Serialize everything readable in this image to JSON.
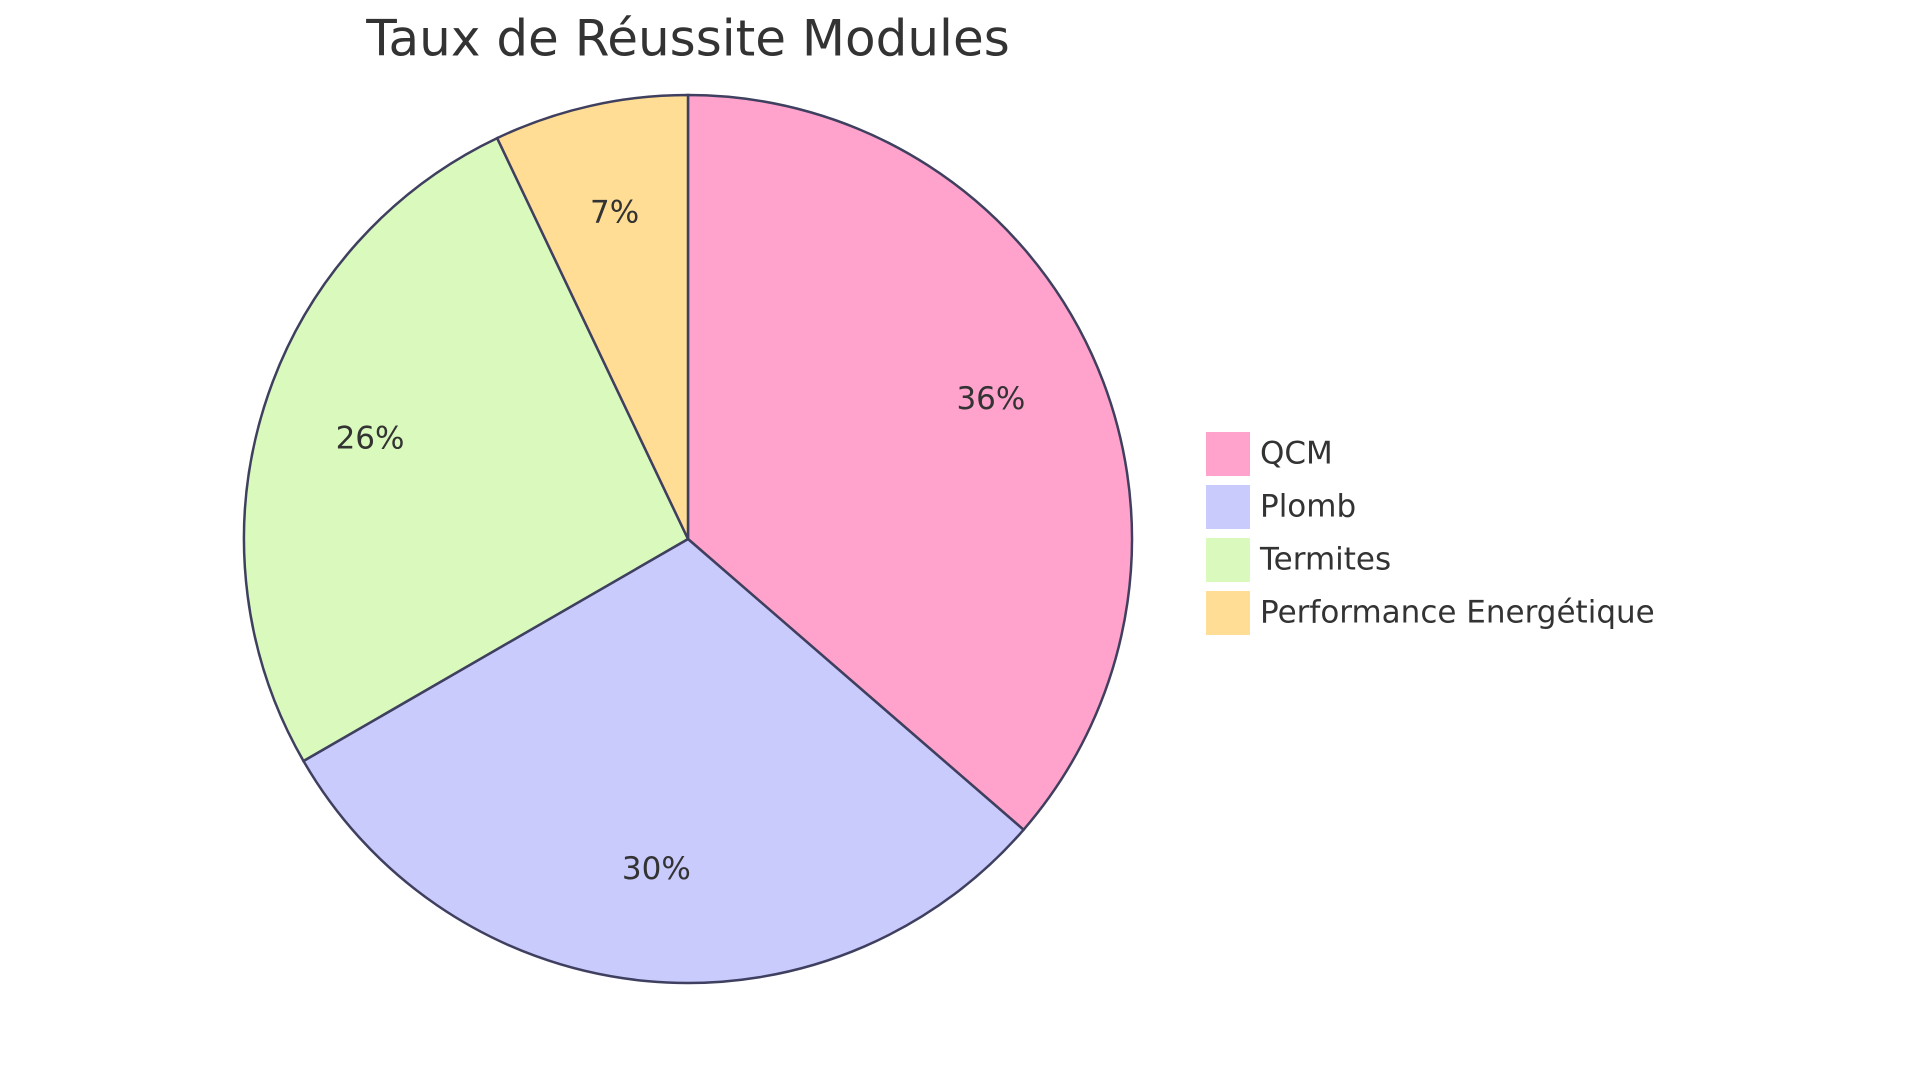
{
  "chart_data": {
    "type": "pie",
    "title": "Taux de Réussite Modules",
    "categories": [
      "QCM",
      "Plomb",
      "Termites",
      "Performance Energétique"
    ],
    "values": [
      36,
      30,
      26,
      7
    ],
    "value_labels": [
      "36%",
      "30%",
      "26%",
      "7%"
    ],
    "colors": [
      "#ffa3cd",
      "#cacbfd",
      "#dafabd",
      "#ffdd94"
    ],
    "legend": "right"
  }
}
